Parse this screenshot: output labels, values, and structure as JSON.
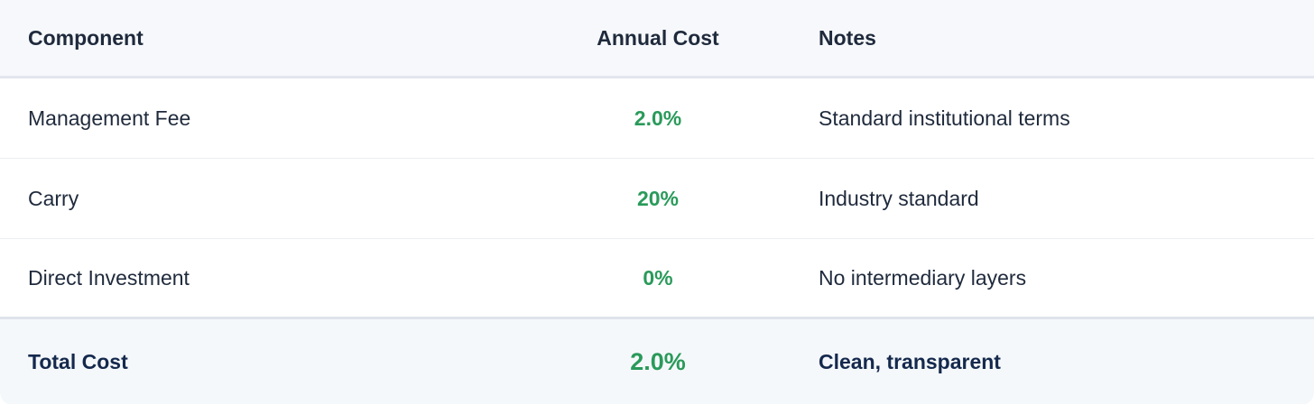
{
  "table": {
    "headers": [
      "Component",
      "Annual Cost",
      "Notes"
    ],
    "rows": [
      [
        "Management Fee",
        "2.0%",
        "Standard institutional terms"
      ],
      [
        "Carry",
        "20%",
        "Industry standard"
      ],
      [
        "Direct Investment",
        "0%",
        "No intermediary layers"
      ]
    ],
    "footer": [
      "Total Cost",
      "2.0%",
      "Clean, transparent"
    ]
  }
}
